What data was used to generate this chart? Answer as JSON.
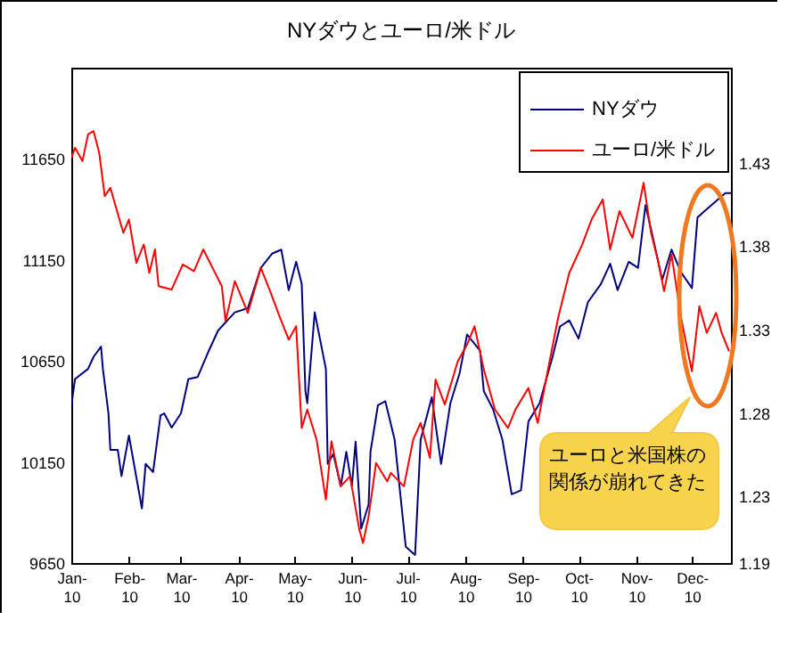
{
  "chart_data": {
    "type": "line",
    "title": "NYダウとユーロ/米ドル",
    "xlim": [
      "2010-01-01",
      "2010-12-22"
    ],
    "xticks": [
      {
        "value": "2010-01-01",
        "label": "Jan-10"
      },
      {
        "value": "2010-02-01",
        "label": "Feb-10"
      },
      {
        "value": "2010-03-01",
        "label": "Mar-10"
      },
      {
        "value": "2010-04-01",
        "label": "Apr-10"
      },
      {
        "value": "2010-05-01",
        "label": "May-10"
      },
      {
        "value": "2010-06-01",
        "label": "Jun-10"
      },
      {
        "value": "2010-07-01",
        "label": "Jul-10"
      },
      {
        "value": "2010-08-01",
        "label": "Aug-10"
      },
      {
        "value": "2010-09-01",
        "label": "Sep-10"
      },
      {
        "value": "2010-10-01",
        "label": "Oct-10"
      },
      {
        "value": "2010-11-01",
        "label": "Nov-10"
      },
      {
        "value": "2010-12-01",
        "label": "Dec-10"
      }
    ],
    "ylim": [
      9650,
      12100
    ],
    "yticks": [
      9650,
      10150,
      10650,
      11150,
      11650
    ],
    "y2lim": [
      1.19,
      1.487
    ],
    "y2ticks": [
      1.19,
      1.23,
      1.28,
      1.33,
      1.38,
      1.43
    ],
    "legend": "top right",
    "series": [
      {
        "name": "NYダウ",
        "color": "#000080",
        "x": [
          "2010-01-01",
          "2010-01-03",
          "2010-01-10",
          "2010-01-13",
          "2010-01-17",
          "2010-01-18",
          "2010-01-21",
          "2010-01-22",
          "2010-01-26",
          "2010-01-28",
          "2010-02-01",
          "2010-02-08",
          "2010-02-10",
          "2010-02-14",
          "2010-02-18",
          "2010-02-20",
          "2010-02-24",
          "2010-03-01",
          "2010-03-05",
          "2010-03-10",
          "2010-03-16",
          "2010-03-21",
          "2010-03-30",
          "2010-04-06",
          "2010-04-13",
          "2010-04-19",
          "2010-04-24",
          "2010-04-28",
          "2010-05-02",
          "2010-05-05",
          "2010-05-07",
          "2010-05-08",
          "2010-05-12",
          "2010-05-18",
          "2010-05-19",
          "2010-05-22",
          "2010-05-26",
          "2010-05-29",
          "2010-06-01",
          "2010-06-03",
          "2010-06-06",
          "2010-06-10",
          "2010-06-11",
          "2010-06-15",
          "2010-06-19",
          "2010-06-24",
          "2010-06-30",
          "2010-07-05",
          "2010-07-08",
          "2010-07-14",
          "2010-07-19",
          "2010-07-24",
          "2010-07-29",
          "2010-08-02",
          "2010-08-09",
          "2010-08-11",
          "2010-08-16",
          "2010-08-21",
          "2010-08-26",
          "2010-08-31",
          "2010-09-04",
          "2010-09-10",
          "2010-09-17",
          "2010-09-21",
          "2010-09-26",
          "2010-10-01",
          "2010-10-06",
          "2010-10-13",
          "2010-10-18",
          "2010-10-22",
          "2010-10-28",
          "2010-11-02",
          "2010-11-06",
          "2010-11-10",
          "2010-11-15",
          "2010-11-20",
          "2010-11-25",
          "2010-12-01",
          "2010-12-04",
          "2010-12-09",
          "2010-12-14",
          "2010-12-19",
          "2010-12-22"
        ],
        "values": [
          10430,
          10560,
          10610,
          10670,
          10720,
          10610,
          10390,
          10210,
          10210,
          10080,
          10280,
          9920,
          10140,
          10100,
          10380,
          10390,
          10320,
          10390,
          10560,
          10570,
          10700,
          10800,
          10890,
          10910,
          11110,
          11180,
          11200,
          11000,
          11140,
          11030,
          10500,
          10440,
          10890,
          10610,
          10140,
          10190,
          10030,
          10200,
          10030,
          10250,
          9820,
          9940,
          10200,
          10430,
          10450,
          10260,
          9730,
          9690,
          10260,
          10470,
          10140,
          10440,
          10590,
          10780,
          10700,
          10500,
          10410,
          10260,
          9990,
          10010,
          10350,
          10440,
          10670,
          10820,
          10850,
          10760,
          10940,
          11030,
          11130,
          11000,
          11140,
          11110,
          11420,
          11260,
          11050,
          11200,
          11090,
          11010,
          11360,
          11400,
          11440,
          11480,
          11480
        ]
      },
      {
        "name": "ユーロ/米ドル",
        "color": "#ff0000",
        "axis": "y2",
        "x": [
          "2010-01-01",
          "2010-01-03",
          "2010-01-07",
          "2010-01-10",
          "2010-01-13",
          "2010-01-16",
          "2010-01-19",
          "2010-01-22",
          "2010-01-29",
          "2010-02-01",
          "2010-02-05",
          "2010-02-09",
          "2010-02-12",
          "2010-02-15",
          "2010-02-17",
          "2010-02-24",
          "2010-03-02",
          "2010-03-08",
          "2010-03-13",
          "2010-03-18",
          "2010-03-23",
          "2010-03-25",
          "2010-03-30",
          "2010-04-06",
          "2010-04-13",
          "2010-04-18",
          "2010-04-23",
          "2010-04-28",
          "2010-05-02",
          "2010-05-05",
          "2010-05-08",
          "2010-05-13",
          "2010-05-18",
          "2010-05-21",
          "2010-05-26",
          "2010-05-31",
          "2010-06-05",
          "2010-06-07",
          "2010-06-10",
          "2010-06-14",
          "2010-06-20",
          "2010-06-22",
          "2010-06-29",
          "2010-07-04",
          "2010-07-08",
          "2010-07-13",
          "2010-07-16",
          "2010-07-21",
          "2010-07-28",
          "2010-08-02",
          "2010-08-06",
          "2010-08-11",
          "2010-08-17",
          "2010-08-24",
          "2010-08-28",
          "2010-09-04",
          "2010-09-09",
          "2010-09-14",
          "2010-09-20",
          "2010-09-26",
          "2010-10-03",
          "2010-10-08",
          "2010-10-14",
          "2010-10-18",
          "2010-10-23",
          "2010-10-30",
          "2010-11-05",
          "2010-11-09",
          "2010-11-13",
          "2010-11-16",
          "2010-11-20",
          "2010-11-25",
          "2010-11-28",
          "2010-12-01",
          "2010-12-05",
          "2010-12-09",
          "2010-12-14",
          "2010-12-17",
          "2010-12-21"
        ],
        "values": [
          1.433,
          1.439,
          1.431,
          1.447,
          1.449,
          1.436,
          1.41,
          1.415,
          1.388,
          1.396,
          1.37,
          1.381,
          1.364,
          1.378,
          1.356,
          1.354,
          1.369,
          1.365,
          1.378,
          1.367,
          1.356,
          1.335,
          1.359,
          1.34,
          1.367,
          1.353,
          1.338,
          1.324,
          1.332,
          1.271,
          1.282,
          1.264,
          1.228,
          1.263,
          1.236,
          1.242,
          1.21,
          1.202,
          1.218,
          1.25,
          1.239,
          1.244,
          1.236,
          1.264,
          1.274,
          1.253,
          1.3,
          1.285,
          1.311,
          1.321,
          1.332,
          1.306,
          1.282,
          1.271,
          1.282,
          1.295,
          1.274,
          1.303,
          1.337,
          1.364,
          1.381,
          1.396,
          1.408,
          1.378,
          1.401,
          1.385,
          1.418,
          1.388,
          1.37,
          1.353,
          1.375,
          1.338,
          1.321,
          1.305,
          1.344,
          1.328,
          1.34,
          1.328,
          1.317
        ]
      }
    ],
    "annotations": [
      "ユーロと米国株の関係が崩れてきた"
    ]
  }
}
